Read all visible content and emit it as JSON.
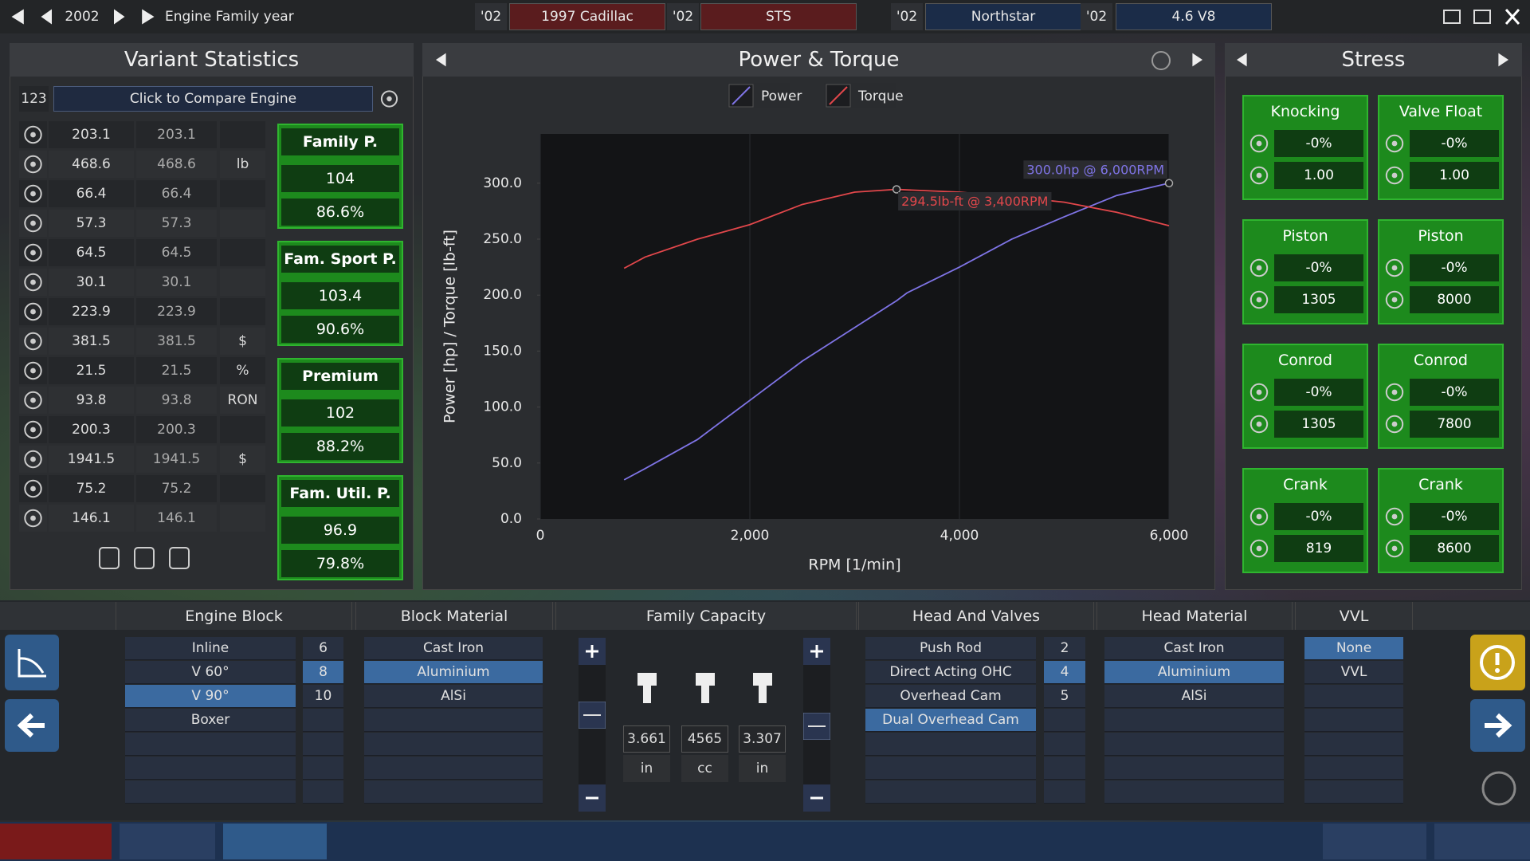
{
  "top_bar": {
    "year": "2002",
    "year_label": "Engine Family year",
    "tabs": [
      {
        "year": "'02",
        "name": "1997 Cadillac"
      },
      {
        "year": "'02",
        "name": "STS"
      },
      {
        "year": "'02",
        "name": "Northstar"
      },
      {
        "year": "'02",
        "name": "4.6 V8"
      }
    ]
  },
  "variant_statistics": {
    "title": "Variant Statistics",
    "compare_id": "123",
    "compare_label": "Click to Compare Engine",
    "rows": [
      {
        "a": "203.1",
        "b": "203.1"
      },
      {
        "a": "468.6",
        "b": "468.6",
        "unit": "lb"
      },
      {
        "a": "66.4",
        "b": "66.4"
      },
      {
        "a": "57.3",
        "b": "57.3"
      },
      {
        "a": "64.5",
        "b": "64.5"
      },
      {
        "a": "30.1",
        "b": "30.1"
      },
      {
        "a": "223.9",
        "b": "223.9"
      },
      {
        "a": "381.5",
        "b": "381.5",
        "unit": "$"
      },
      {
        "a": "21.5",
        "b": "21.5",
        "unit": "%"
      },
      {
        "a": "93.8",
        "b": "93.8",
        "unit": "RON"
      },
      {
        "a": "200.3",
        "b": "200.3"
      },
      {
        "a": "1941.5",
        "b": "1941.5",
        "unit": "$"
      },
      {
        "a": "75.2",
        "b": "75.2"
      },
      {
        "a": "146.1",
        "b": "146.1"
      }
    ],
    "family_scores": [
      {
        "label": "Family P.",
        "score": "104",
        "percent": "86.6%"
      },
      {
        "label": "Fam. Sport P.",
        "score": "103.4",
        "percent": "90.6%"
      },
      {
        "label": "Premium",
        "score": "102",
        "percent": "88.2%"
      },
      {
        "label": "Fam. Util. P.",
        "score": "96.9",
        "percent": "79.8%"
      }
    ]
  },
  "chart_data": {
    "type": "line",
    "title": "Power & Torque",
    "x_label": "RPM [1/min]",
    "y_label": "Power [hp] / Torque [lb-ft]",
    "x": [
      800,
      1000,
      1500,
      2000,
      2500,
      3000,
      3400,
      3500,
      4000,
      4500,
      5000,
      5500,
      6000
    ],
    "series": [
      {
        "name": "Power",
        "color": "#7f74e6",
        "values": [
          35,
          45,
          71,
          106,
          141,
          171,
          195,
          202,
          225,
          250,
          270,
          289,
          300
        ]
      },
      {
        "name": "Torque",
        "color": "#e2474b",
        "values": [
          224,
          234,
          250,
          263,
          281,
          292,
          294.5,
          294,
          292,
          288,
          283,
          274,
          262
        ]
      }
    ],
    "annotations": [
      {
        "text": "300.0hp @ 6,000RPM",
        "series": 0,
        "index": 12
      },
      {
        "text": "294.5lb-ft @ 3,400RPM",
        "series": 1,
        "index": 6
      }
    ],
    "xlim": [
      0,
      6000
    ],
    "xticks": [
      0,
      {
        "value": 2000,
        "label": "2,000"
      },
      {
        "value": 4000,
        "label": "4,000"
      },
      {
        "value": 6000,
        "label": "6,000"
      }
    ],
    "ylim": [
      0,
      344
    ],
    "yticks": [
      {
        "value": 0,
        "label": "0.0"
      },
      {
        "value": 50,
        "label": "50.0"
      },
      {
        "value": 100,
        "label": "100.0"
      },
      {
        "value": 150,
        "label": "150.0"
      },
      {
        "value": 200,
        "label": "200.0"
      },
      {
        "value": 250,
        "label": "250.0"
      },
      {
        "value": 300,
        "label": "300.0"
      }
    ],
    "grid": "x"
  },
  "stress": {
    "title": "Stress",
    "cards": [
      {
        "label": "Knocking",
        "v1": "-0%",
        "v2": "1.00"
      },
      {
        "label": "Valve Float",
        "v1": "-0%",
        "v2": "1.00"
      },
      {
        "label": "Piston",
        "v1": "-0%",
        "v2": "1305"
      },
      {
        "label": "Piston",
        "v1": "-0%",
        "v2": "8000"
      },
      {
        "label": "Conrod",
        "v1": "-0%",
        "v2": "1305"
      },
      {
        "label": "Conrod",
        "v1": "-0%",
        "v2": "7800"
      },
      {
        "label": "Crank",
        "v1": "-0%",
        "v2": "819"
      },
      {
        "label": "Crank",
        "v1": "-0%",
        "v2": "8600"
      }
    ]
  },
  "engine_block": {
    "title": "Engine Block",
    "layouts": {
      "items": [
        "Inline",
        "V 60°",
        "V 90°",
        "Boxer"
      ],
      "selected": 2
    },
    "cylinders": {
      "items": [
        "6",
        "8",
        "10"
      ],
      "selected": 1
    }
  },
  "block_material": {
    "title": "Block Material",
    "items": [
      "Cast Iron",
      "Aluminium",
      "AlSi"
    ],
    "selected": 1
  },
  "family_capacity": {
    "title": "Family Capacity",
    "bore": {
      "value": "3.661",
      "unit": "in"
    },
    "displacement": {
      "value": "4565",
      "unit": "cc"
    },
    "stroke": {
      "value": "3.307",
      "unit": "in"
    }
  },
  "head_and_valves": {
    "title": "Head And Valves",
    "valvetrain": {
      "items": [
        "Push Rod",
        "Direct Acting OHC",
        "Overhead Cam",
        "Dual Overhead Cam"
      ],
      "selected": 3
    },
    "valves": {
      "items": [
        "2",
        "4",
        "5"
      ],
      "selected": 1
    }
  },
  "head_material": {
    "title": "Head Material",
    "items": [
      "Cast Iron",
      "Aluminium",
      "AlSi"
    ],
    "selected": 1
  },
  "vvl": {
    "title": "VVL",
    "items": [
      "None",
      "VVL"
    ],
    "selected": 0
  }
}
